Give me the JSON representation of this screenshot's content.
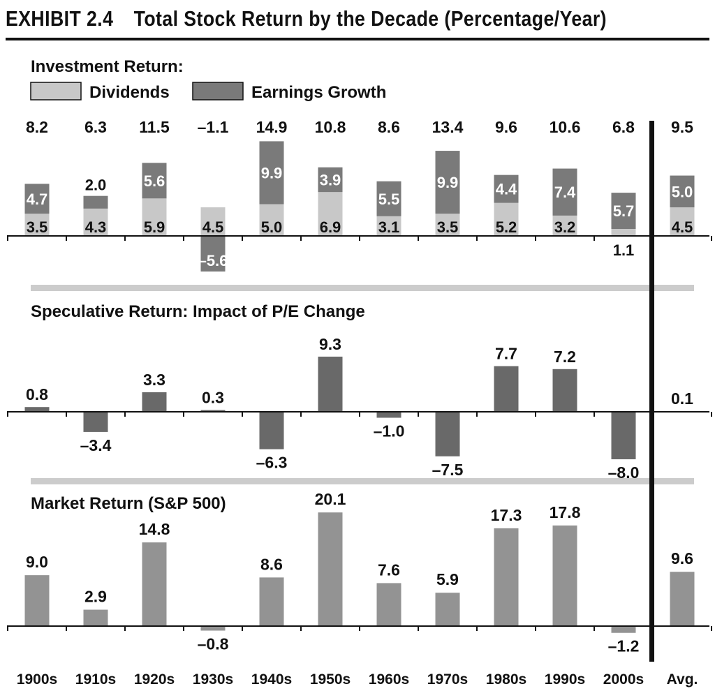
{
  "page": {
    "exhibit_label": "EXHIBIT 2.4",
    "title": "Total Stock Return by the Decade (Percentage/Year)"
  },
  "colors": {
    "dividends": "#c8c8c8",
    "earnings_growth": "#7a7a7a",
    "speculative": "#696969",
    "market": "#939393",
    "separator": "#cccccc",
    "axis": "#111111"
  },
  "chart_data": [
    {
      "type": "bar",
      "stacked": true,
      "title": "Investment Return:",
      "categories": [
        "1900s",
        "1910s",
        "1920s",
        "1930s",
        "1940s",
        "1950s",
        "1960s",
        "1970s",
        "1980s",
        "1990s",
        "2000s",
        "Avg."
      ],
      "series": [
        {
          "name": "Dividends",
          "values": [
            3.5,
            4.3,
            5.9,
            4.5,
            5.0,
            6.9,
            3.1,
            3.5,
            5.2,
            3.2,
            1.1,
            4.5
          ]
        },
        {
          "name": "Earnings Growth",
          "values": [
            4.7,
            2.0,
            5.6,
            -5.6,
            9.9,
            3.9,
            5.5,
            9.9,
            4.4,
            7.4,
            5.7,
            5.0
          ]
        }
      ],
      "totals": [
        "8.2",
        "6.3",
        "11.5",
        "–1.1",
        "14.9",
        "10.8",
        "8.6",
        "13.4",
        "9.6",
        "10.6",
        "6.8",
        "9.5"
      ],
      "dividend_labels": [
        "3.5",
        "4.3",
        "5.9",
        "4.5",
        "5.0",
        "6.9",
        "3.1",
        "3.5",
        "5.2",
        "3.2",
        "1.1",
        "4.5"
      ],
      "earnings_labels": [
        "4.7",
        "2.0",
        "5.6",
        "–5.6",
        "9.9",
        "3.9",
        "5.5",
        "9.9",
        "4.4",
        "7.4",
        "5.7",
        "5.0"
      ],
      "legend": {
        "dividends": "Dividends",
        "earnings": "Earnings Growth",
        "position": "top-left"
      }
    },
    {
      "type": "bar",
      "title": "Speculative Return: Impact of P/E Change",
      "categories": [
        "1900s",
        "1910s",
        "1920s",
        "1930s",
        "1940s",
        "1950s",
        "1960s",
        "1970s",
        "1980s",
        "1990s",
        "2000s",
        "Avg."
      ],
      "values": [
        0.8,
        -3.4,
        3.3,
        0.3,
        -6.3,
        9.3,
        -1.0,
        -7.5,
        7.7,
        7.2,
        -8.0,
        0.1
      ],
      "labels": [
        "0.8",
        "–3.4",
        "3.3",
        "0.3",
        "–6.3",
        "9.3",
        "–1.0",
        "–7.5",
        "7.7",
        "7.2",
        "–8.0",
        "0.1"
      ]
    },
    {
      "type": "bar",
      "title": "Market Return (S&P 500)",
      "categories": [
        "1900s",
        "1910s",
        "1920s",
        "1930s",
        "1940s",
        "1950s",
        "1960s",
        "1970s",
        "1980s",
        "1990s",
        "2000s",
        "Avg."
      ],
      "values": [
        9.0,
        2.9,
        14.8,
        -0.8,
        8.6,
        20.1,
        7.6,
        5.9,
        17.3,
        17.8,
        -1.2,
        9.6
      ],
      "labels": [
        "9.0",
        "2.9",
        "14.8",
        "–0.8",
        "8.6",
        "20.1",
        "7.6",
        "5.9",
        "17.3",
        "17.8",
        "–1.2",
        "9.6"
      ]
    }
  ]
}
